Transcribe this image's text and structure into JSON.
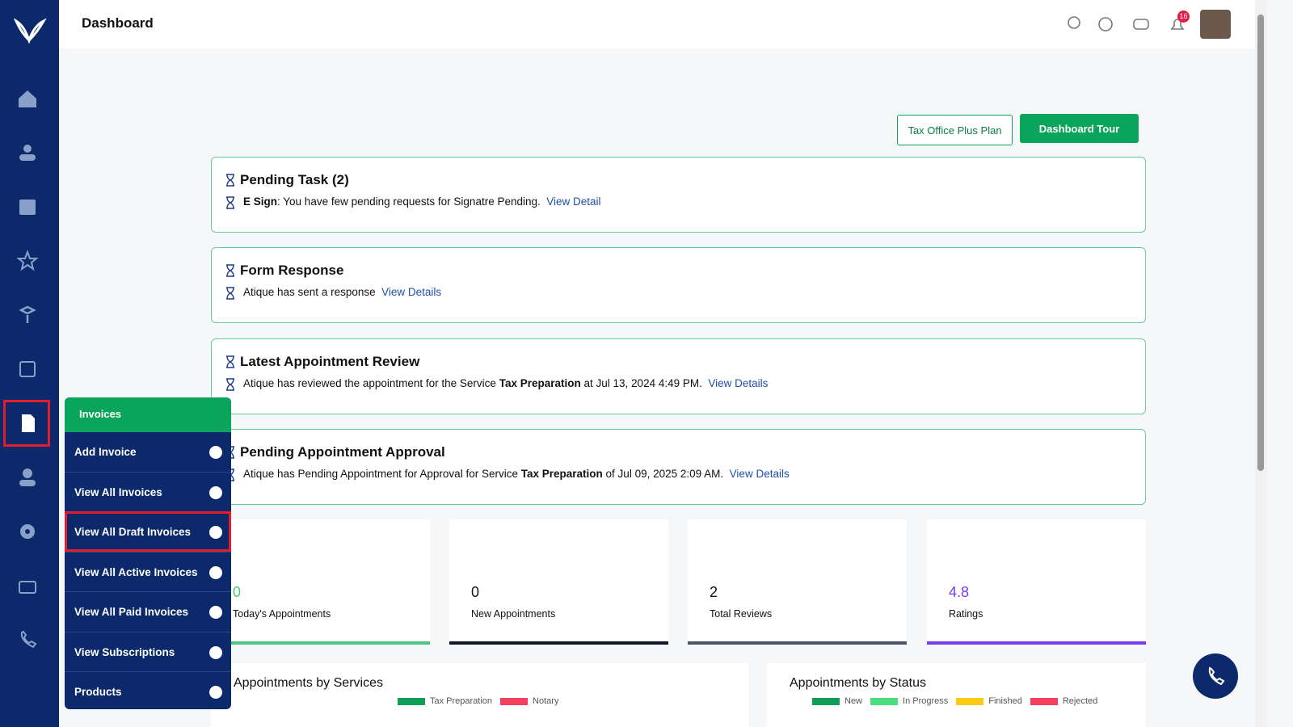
{
  "header": {
    "title": "Dashboard",
    "notification_count": "16"
  },
  "buttons": {
    "plan": "Tax Office Plus Plan",
    "tour": "Dashboard Tour"
  },
  "cards": [
    {
      "title": "Pending Task (2)",
      "label": "E Sign",
      "text": ": You have few pending requests for Signatre Pending.",
      "link": "View Detail"
    },
    {
      "title": "Form Response",
      "text": "Atique has sent a response",
      "link": "View Details"
    },
    {
      "title": "Latest Appointment Review",
      "text": "Atique has reviewed the appointment for the Service",
      "service": "Tax Preparation",
      "tail": "at Jul 13, 2024 4:49 PM.",
      "link": "View Details"
    },
    {
      "title": "Pending Appointment Approval",
      "text": "Atique has Pending Appointment for Approval for Service",
      "service": "Tax Preparation",
      "tail": "of Jul 09, 2025 2:09 AM.",
      "link": "View Details"
    }
  ],
  "stats": [
    {
      "value": 0,
      "label": "Today's Appointments",
      "color": "#4cc57f"
    },
    {
      "value": 0,
      "label": "New Appointments",
      "color": "#111827"
    },
    {
      "value": 2,
      "label": "Total Reviews",
      "color": "#4b5563"
    },
    {
      "value": 4.8,
      "label": "Ratings",
      "color": "#7c3aed"
    }
  ],
  "panels": [
    {
      "title": "Appointments by Services",
      "legend": [
        {
          "name": "Tax Preparation",
          "color": "#0f9d58"
        },
        {
          "name": "Notary",
          "color": "#f43f5e"
        }
      ]
    },
    {
      "title": "Appointments by Status",
      "legend": [
        {
          "name": "New",
          "color": "#0f9d58"
        },
        {
          "name": "In Progress",
          "color": "#4ade80"
        },
        {
          "name": "Finished",
          "color": "#facc15"
        },
        {
          "name": "Rejected",
          "color": "#f43f5e"
        }
      ]
    }
  ],
  "menu": {
    "title": "Invoices",
    "items": [
      "Add Invoice",
      "View All Invoices",
      "View All Draft Invoices",
      "View All Active Invoices",
      "View All Paid Invoices",
      "View Subscriptions",
      "Products"
    ]
  }
}
